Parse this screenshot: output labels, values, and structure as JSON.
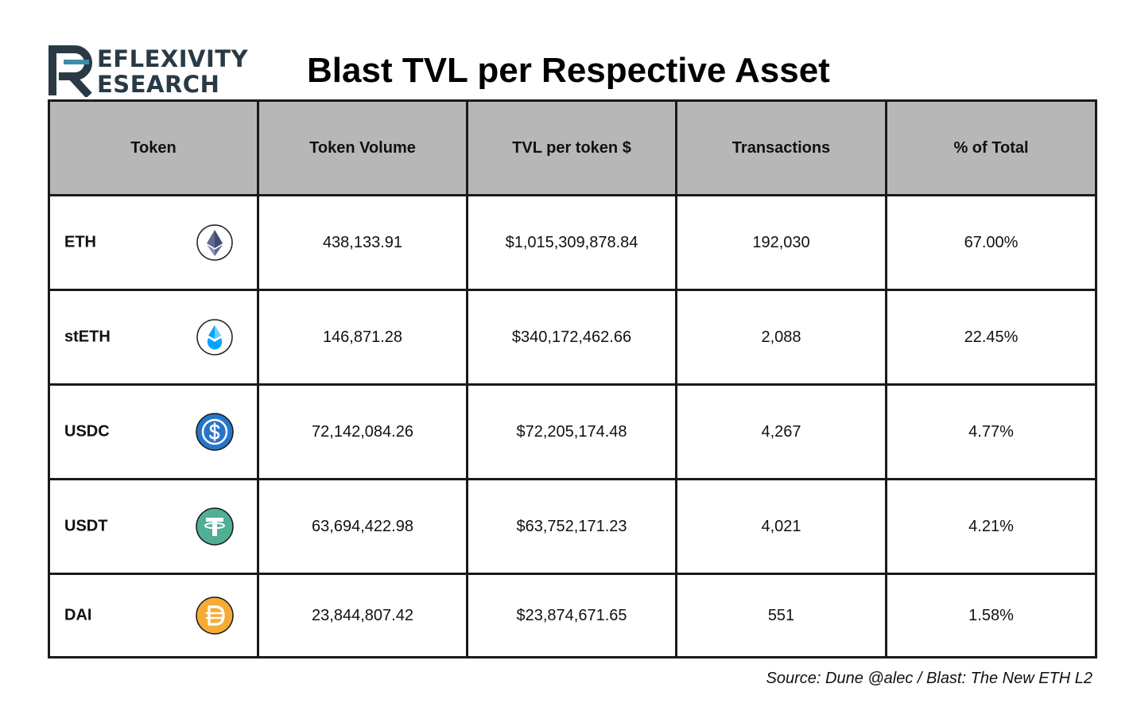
{
  "logo": {
    "line1": "EFLEXIVITY",
    "line2": "ESEARCH"
  },
  "title": "Blast TVL per Respective Asset",
  "chart_data": {
    "type": "table",
    "title": "Blast TVL per Respective Asset",
    "columns": [
      "Token",
      "Token Volume",
      "TVL per token $",
      "Transactions",
      "% of Total"
    ],
    "rows": [
      {
        "token": "ETH",
        "icon": "eth-icon",
        "volume": "438,133.91",
        "tvl": "$1,015,309,878.84",
        "transactions": "192,030",
        "pct": "67.00%"
      },
      {
        "token": "stETH",
        "icon": "steth-icon",
        "volume": "146,871.28",
        "tvl": "$340,172,462.66",
        "transactions": "2,088",
        "pct": "22.45%"
      },
      {
        "token": "USDC",
        "icon": "usdc-icon",
        "volume": "72,142,084.26",
        "tvl": "$72,205,174.48",
        "transactions": "4,267",
        "pct": "4.77%"
      },
      {
        "token": "USDT",
        "icon": "usdt-icon",
        "volume": "63,694,422.98",
        "tvl": "$63,752,171.23",
        "transactions": "4,021",
        "pct": "4.21%"
      },
      {
        "token": "DAI",
        "icon": "dai-icon",
        "volume": "23,844,807.42",
        "tvl": "$23,874,671.65",
        "transactions": "551",
        "pct": "1.58%"
      }
    ]
  },
  "colors": {
    "header_bg": "#b7b7b7",
    "usdc": "#2775ca",
    "usdt": "#50af95",
    "dai": "#f5ac37",
    "steth": "#00a3ff"
  },
  "source": "Source: Dune @alec / Blast: The New ETH L2"
}
